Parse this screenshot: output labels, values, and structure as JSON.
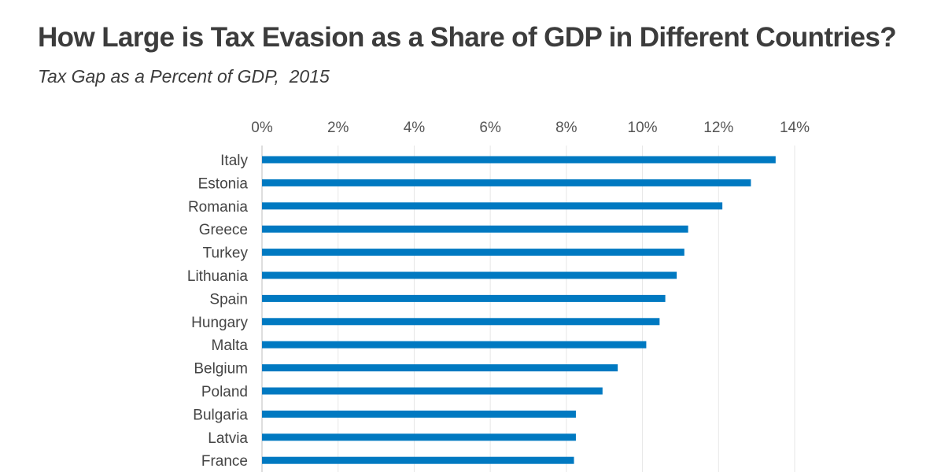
{
  "header": {
    "title": "How Large is Tax Evasion as a Share of GDP in Different Countries?",
    "subtitle": "Tax Gap as a Percent of GDP,  2015"
  },
  "colors": {
    "bar": "#0079c1",
    "grid": "#e6e6e6",
    "axis": "#c8c8c8"
  },
  "chart_data": {
    "type": "bar",
    "orientation": "horizontal",
    "title": "How Large is Tax Evasion as a Share of GDP in Different Countries?",
    "subtitle": "Tax Gap as a Percent of GDP,  2015",
    "categories": [
      "Italy",
      "Estonia",
      "Romania",
      "Greece",
      "Turkey",
      "Lithuania",
      "Spain",
      "Hungary",
      "Malta",
      "Belgium",
      "Poland",
      "Bulgaria",
      "Latvia",
      "France"
    ],
    "values": [
      13.5,
      12.85,
      12.1,
      11.2,
      11.1,
      10.9,
      10.6,
      10.45,
      10.1,
      9.35,
      8.95,
      8.25,
      8.25,
      8.2
    ],
    "xlim": [
      0,
      14
    ],
    "ticks": [
      "0%",
      "2%",
      "4%",
      "6%",
      "8%",
      "10%",
      "12%",
      "14%"
    ],
    "xlabel": "",
    "ylabel": "",
    "grid": true,
    "axis_position": "top"
  }
}
